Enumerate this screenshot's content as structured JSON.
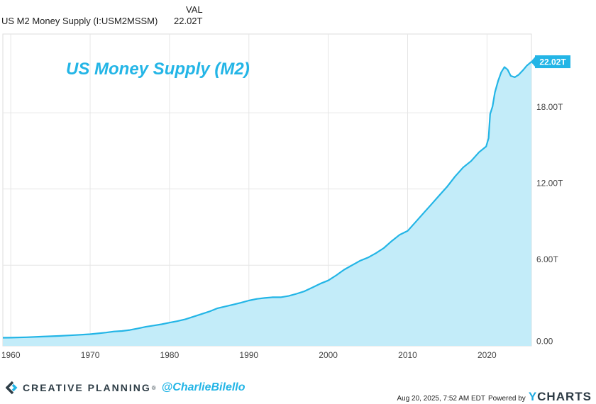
{
  "legend": {
    "column_header": "VAL",
    "series_name": "US M2 Money Supply (I:USM2MSSM)",
    "series_value": "22.02T"
  },
  "chart_data": {
    "type": "area",
    "title": "US Money Supply (M2)",
    "x_ticks": [
      "1960",
      "1970",
      "1980",
      "1990",
      "2000",
      "2010",
      "2020"
    ],
    "y_ticks": [
      "0.00",
      "6.00T",
      "12.00T",
      "18.00T"
    ],
    "y_tick_values": [
      0,
      6,
      12,
      18
    ],
    "xlim": [
      1959.0,
      2025.6
    ],
    "ylim": [
      -0.35,
      24.2
    ],
    "last_value_label": "22.02T",
    "line_color": "#23b5e6",
    "fill_color": "#c3ecf9",
    "grid": true,
    "series": [
      {
        "points": [
          [
            1959.0,
            0.29
          ],
          [
            1960.0,
            0.3
          ],
          [
            1962.0,
            0.33
          ],
          [
            1964.0,
            0.38
          ],
          [
            1966.0,
            0.43
          ],
          [
            1968.0,
            0.5
          ],
          [
            1970.0,
            0.57
          ],
          [
            1971.0,
            0.63
          ],
          [
            1972.0,
            0.7
          ],
          [
            1973.0,
            0.78
          ],
          [
            1974.0,
            0.82
          ],
          [
            1975.0,
            0.9
          ],
          [
            1976.0,
            1.02
          ],
          [
            1977.0,
            1.15
          ],
          [
            1978.0,
            1.25
          ],
          [
            1979.0,
            1.35
          ],
          [
            1980.0,
            1.48
          ],
          [
            1981.0,
            1.6
          ],
          [
            1982.0,
            1.75
          ],
          [
            1983.0,
            1.95
          ],
          [
            1984.0,
            2.15
          ],
          [
            1985.0,
            2.35
          ],
          [
            1986.0,
            2.6
          ],
          [
            1987.0,
            2.75
          ],
          [
            1988.0,
            2.9
          ],
          [
            1989.0,
            3.05
          ],
          [
            1990.0,
            3.22
          ],
          [
            1991.0,
            3.35
          ],
          [
            1992.0,
            3.42
          ],
          [
            1993.0,
            3.48
          ],
          [
            1994.0,
            3.48
          ],
          [
            1995.0,
            3.58
          ],
          [
            1996.0,
            3.75
          ],
          [
            1997.0,
            3.95
          ],
          [
            1998.0,
            4.25
          ],
          [
            1999.0,
            4.55
          ],
          [
            2000.0,
            4.8
          ],
          [
            2001.0,
            5.2
          ],
          [
            2002.0,
            5.65
          ],
          [
            2003.0,
            6.0
          ],
          [
            2004.0,
            6.35
          ],
          [
            2005.0,
            6.6
          ],
          [
            2006.0,
            6.95
          ],
          [
            2007.0,
            7.35
          ],
          [
            2008.0,
            7.9
          ],
          [
            2009.0,
            8.4
          ],
          [
            2010.0,
            8.7
          ],
          [
            2011.0,
            9.4
          ],
          [
            2012.0,
            10.1
          ],
          [
            2013.0,
            10.8
          ],
          [
            2014.0,
            11.5
          ],
          [
            2015.0,
            12.2
          ],
          [
            2016.0,
            13.0
          ],
          [
            2017.0,
            13.7
          ],
          [
            2018.0,
            14.2
          ],
          [
            2019.0,
            14.9
          ],
          [
            2019.9,
            15.35
          ],
          [
            2020.2,
            16.0
          ],
          [
            2020.4,
            17.9
          ],
          [
            2020.7,
            18.5
          ],
          [
            2021.0,
            19.6
          ],
          [
            2021.4,
            20.5
          ],
          [
            2021.8,
            21.2
          ],
          [
            2022.2,
            21.6
          ],
          [
            2022.6,
            21.4
          ],
          [
            2023.0,
            20.9
          ],
          [
            2023.5,
            20.8
          ],
          [
            2024.0,
            21.0
          ],
          [
            2024.6,
            21.4
          ],
          [
            2025.0,
            21.7
          ],
          [
            2025.6,
            22.02
          ]
        ]
      }
    ]
  },
  "footer": {
    "brand_name": "CREATIVE PLANNING",
    "brand_reg": "®",
    "handle": "@CharlieBilello",
    "date": "Aug 20, 2025, 7:52 AM EDT",
    "powered_by": "Powered by",
    "ycharts_y": "Y",
    "ycharts_rest": "CHARTS"
  }
}
